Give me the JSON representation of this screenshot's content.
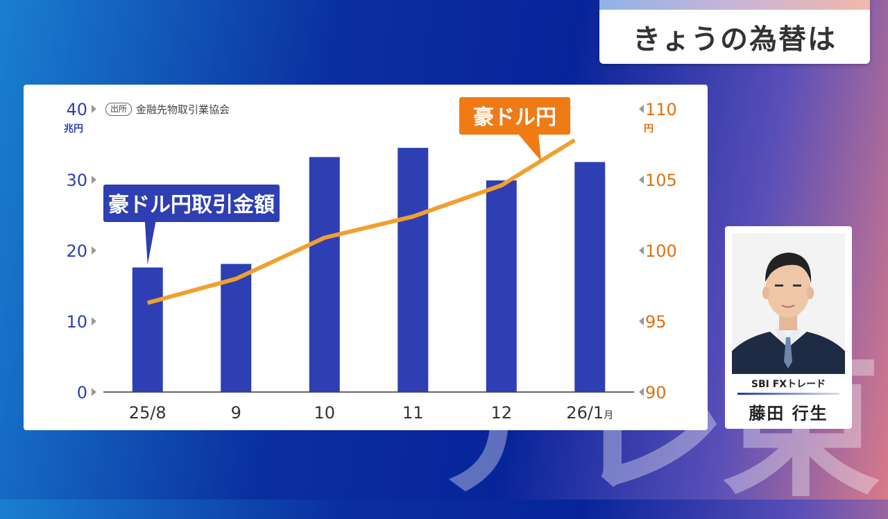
{
  "header": {
    "title": "きょうの為替は"
  },
  "watermark": {
    "text": "テレ東"
  },
  "source": {
    "tag": "出所",
    "text": "金融先物取引業協会"
  },
  "chart_data": {
    "type": "bar+line",
    "categories": [
      "25/8",
      "9",
      "10",
      "11",
      "12",
      "26/1"
    ],
    "category_suffix": "月",
    "series": [
      {
        "name": "豪ドル円取引金額",
        "type": "bar",
        "axis": "left",
        "color": "#2e3fb4",
        "values": [
          17.6,
          18.1,
          33.2,
          34.5,
          29.9,
          32.5
        ]
      },
      {
        "name": "豪ドル円",
        "type": "line",
        "axis": "right",
        "color": "#f0a030",
        "values": [
          96.3,
          98.0,
          100.9,
          102.4,
          104.6,
          107.8
        ]
      }
    ],
    "left_axis": {
      "unit": "兆円",
      "ylim": [
        0,
        40
      ],
      "ticks": [
        0,
        10,
        20,
        30,
        40
      ],
      "color": "#2e3fb4"
    },
    "right_axis": {
      "unit": "円",
      "ylim": [
        90,
        110
      ],
      "ticks": [
        90,
        95,
        100,
        105,
        110
      ],
      "color": "#e07010"
    },
    "bar_label_color": "#2e3fb4",
    "line_label_color": "#f07a14"
  },
  "guest": {
    "company": "SBI FXトレード",
    "name": "藤田 行生"
  }
}
